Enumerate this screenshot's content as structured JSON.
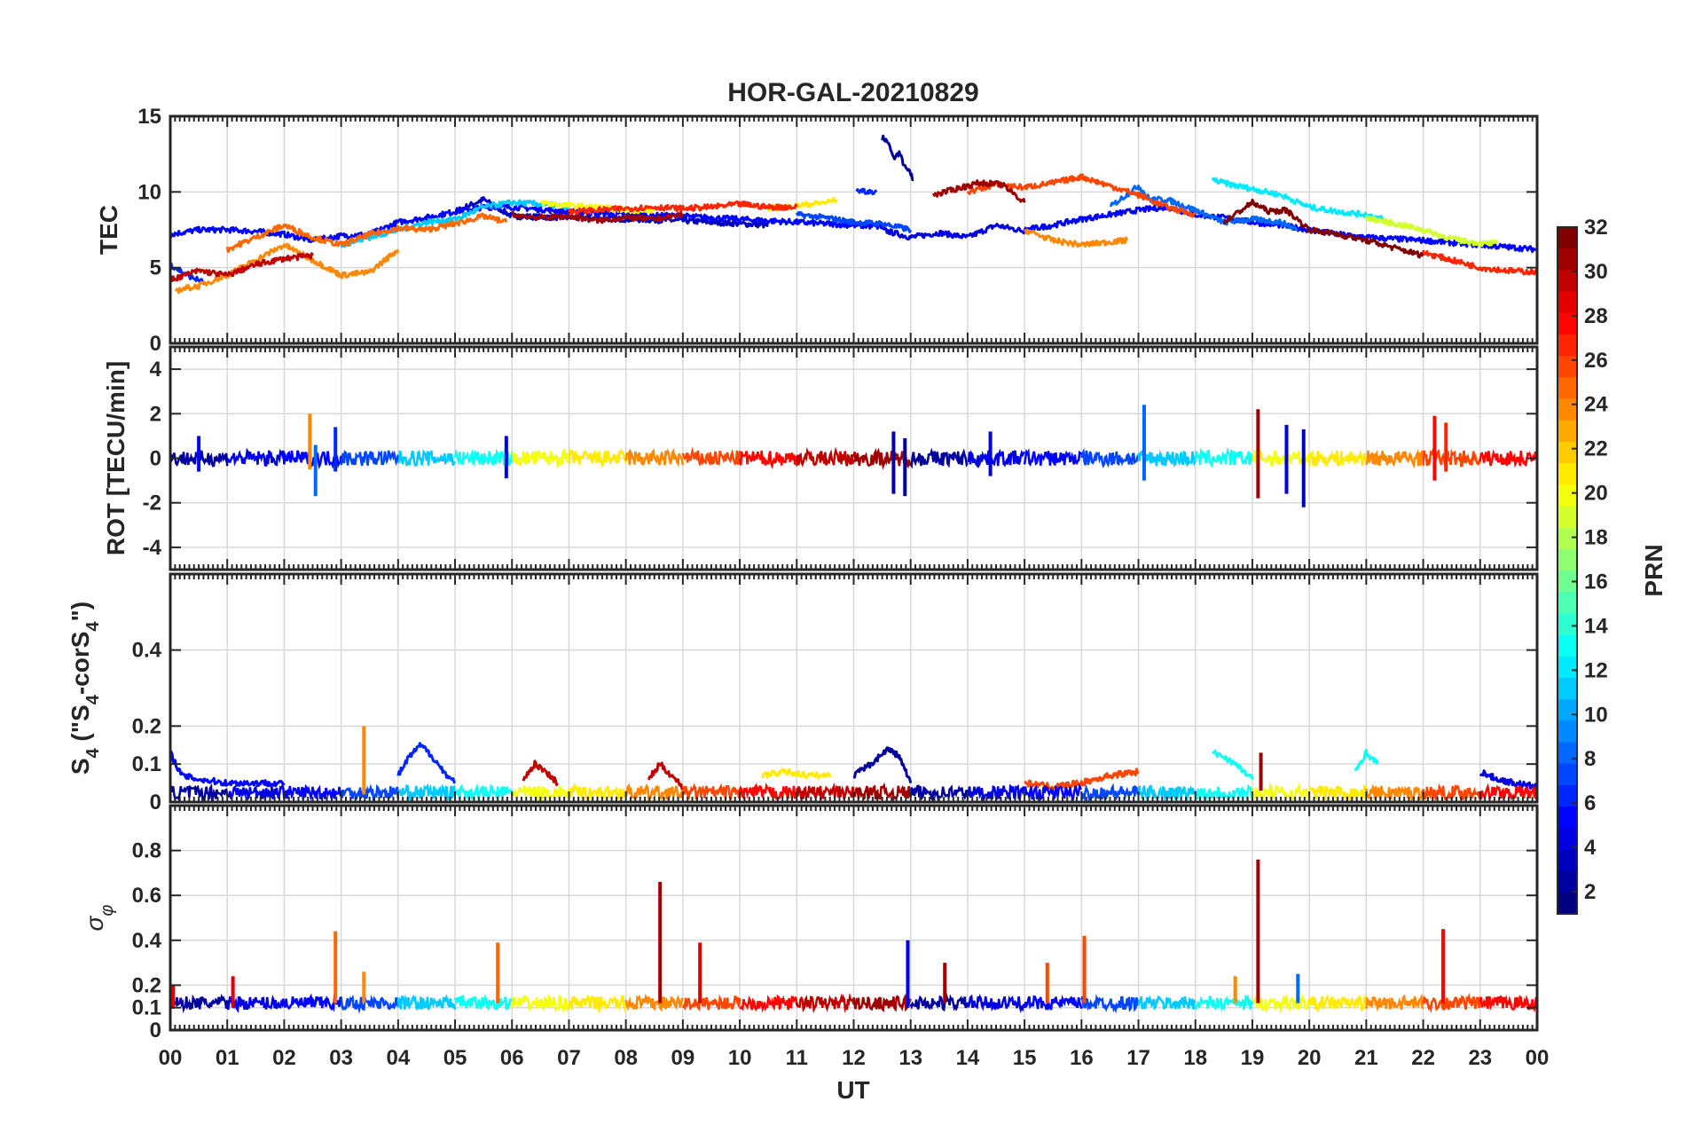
{
  "chart_data": {
    "type": "line",
    "title": "HOR-GAL-20210829",
    "xlabel": "UT",
    "x_tick_labels": [
      "00",
      "01",
      "02",
      "03",
      "04",
      "05",
      "06",
      "07",
      "08",
      "09",
      "10",
      "11",
      "12",
      "13",
      "14",
      "15",
      "16",
      "17",
      "18",
      "19",
      "20",
      "21",
      "22",
      "23",
      "00"
    ],
    "xlim_hours": [
      0,
      24
    ],
    "colorbar": {
      "label": "PRN",
      "range": [
        1,
        32
      ],
      "ticks": [
        "2",
        "4",
        "6",
        "8",
        "10",
        "12",
        "14",
        "16",
        "18",
        "20",
        "22",
        "24",
        "26",
        "28",
        "30",
        "32"
      ],
      "colormap": "jet"
    },
    "panels": [
      {
        "name": "tec",
        "ylabel": "TEC",
        "ylim": [
          0,
          15
        ],
        "yticks": [
          "0",
          "5",
          "10",
          "15"
        ],
        "ytick_values": [
          0,
          5,
          10,
          15
        ],
        "series": [
          {
            "prn": 2,
            "x": [
              12.5,
              12.6,
              12.7,
              12.8,
              12.9,
              13.0,
              13.05
            ],
            "y": [
              13.6,
              13.3,
              12.2,
              12.6,
              11.6,
              11.2,
              10.8
            ]
          },
          {
            "prn": 3,
            "x": [
              5.0,
              5.5,
              6.0,
              7.0,
              8.0,
              9.0,
              10.0,
              10.5
            ],
            "y": [
              8.7,
              9.5,
              8.4,
              8.3,
              8.2,
              8.1,
              7.9,
              7.8
            ]
          },
          {
            "prn": 4,
            "x": [
              12.5,
              13.0,
              13.5,
              14.0,
              14.5,
              15.0
            ],
            "y": [
              7.5,
              7.0,
              7.3,
              7.0,
              7.8,
              7.4
            ]
          },
          {
            "prn": 5,
            "x": [
              0.0,
              0.5,
              1.0,
              1.5,
              2.0,
              2.5,
              3.0,
              3.5,
              4.0,
              4.5,
              5.0,
              5.5,
              6.0,
              7.0,
              8.0,
              9.0,
              10.0,
              11.0,
              12.0,
              12.5
            ],
            "y": [
              7.2,
              7.5,
              7.5,
              7.4,
              7.2,
              6.8,
              7.1,
              7.2,
              8.0,
              8.3,
              8.7,
              9.0,
              9.0,
              8.7,
              8.5,
              8.4,
              8.2,
              8.0,
              7.8,
              7.7
            ]
          },
          {
            "prn": 5,
            "x": [
              15.0,
              15.5,
              16.0,
              16.5,
              17.0,
              17.5,
              18.0,
              18.5,
              19.0,
              19.5,
              20.0,
              20.5,
              21.0,
              22.0,
              23.0,
              24.0
            ],
            "y": [
              7.5,
              7.8,
              8.2,
              8.5,
              8.8,
              9.0,
              8.5,
              8.3,
              8.0,
              7.8,
              7.5,
              7.2,
              7.0,
              6.8,
              6.5,
              6.2
            ]
          },
          {
            "prn": 6,
            "x": [
              0.0,
              0.3,
              0.6
            ],
            "y": [
              5.2,
              4.5,
              4.0
            ]
          },
          {
            "prn": 7,
            "x": [
              11.0,
              11.5,
              12.0,
              12.5,
              13.0
            ],
            "y": [
              8.5,
              8.3,
              8.0,
              7.9,
              7.5
            ]
          },
          {
            "prn": 8,
            "x": [
              16.5,
              17.0,
              17.2,
              17.5,
              18.0,
              18.5,
              19.0,
              19.5,
              19.8
            ],
            "y": [
              9.0,
              10.4,
              9.5,
              9.5,
              8.8,
              8.0,
              8.2,
              8.0,
              7.5
            ]
          },
          {
            "prn": 11,
            "x": [
              3.0,
              3.5,
              4.0,
              4.5,
              5.0,
              5.5,
              6.0,
              6.5,
              7.0
            ],
            "y": [
              6.5,
              7.0,
              7.5,
              8.0,
              8.2,
              9.0,
              9.3,
              9.2,
              9.0
            ]
          },
          {
            "prn": 12,
            "x": [
              18.3,
              18.6,
              19.0,
              19.5,
              20.0,
              20.5,
              21.0,
              21.3
            ],
            "y": [
              10.8,
              10.5,
              10.2,
              9.8,
              9.0,
              8.7,
              8.5,
              8.2
            ]
          },
          {
            "prn": 20,
            "x": [
              6.5,
              7.0,
              7.5,
              8.0,
              8.5
            ],
            "y": [
              9.3,
              9.1,
              9.0,
              8.8,
              8.8
            ]
          },
          {
            "prn": 21,
            "x": [
              10.5,
              11.0,
              11.5,
              11.7
            ],
            "y": [
              8.9,
              9.1,
              9.3,
              9.5
            ]
          },
          {
            "prn": 19,
            "x": [
              21.0,
              21.5,
              22.0,
              22.5,
              23.0,
              23.3
            ],
            "y": [
              8.3,
              7.9,
              7.5,
              6.9,
              6.6,
              6.6
            ]
          },
          {
            "prn": 24,
            "x": [
              0.1,
              0.5,
              1.0,
              1.5,
              2.0,
              2.5,
              3.0,
              3.5,
              4.0
            ],
            "y": [
              3.5,
              3.8,
              4.5,
              5.5,
              6.5,
              5.5,
              4.5,
              4.7,
              6.2
            ]
          },
          {
            "prn": 25,
            "x": [
              1.0,
              1.5,
              2.0,
              2.5,
              3.0,
              3.5,
              4.0,
              4.5,
              5.0,
              5.5,
              5.9
            ],
            "y": [
              6.2,
              7.0,
              7.8,
              7.0,
              6.5,
              7.2,
              7.6,
              7.5,
              7.9,
              8.4,
              8.0
            ]
          },
          {
            "prn": 24,
            "x": [
              15.0,
              15.5,
              16.0,
              16.5,
              16.8
            ],
            "y": [
              7.5,
              6.8,
              6.5,
              6.7,
              6.8
            ]
          },
          {
            "prn": 26,
            "x": [
              14.0,
              14.5,
              15.0,
              15.5,
              16.0,
              16.5,
              17.0,
              17.5,
              18.0
            ],
            "y": [
              10.0,
              10.5,
              10.3,
              10.6,
              11.0,
              10.4,
              9.8,
              9.0,
              8.5
            ]
          },
          {
            "prn": 27,
            "x": [
              7.0,
              7.5,
              8.0,
              8.5,
              9.0,
              9.5,
              10.0,
              10.5,
              11.0
            ],
            "y": [
              8.7,
              8.8,
              8.9,
              9.0,
              8.9,
              9.0,
              9.2,
              9.0,
              9.0
            ]
          },
          {
            "prn": 27,
            "x": [
              22.0,
              22.5,
              23.0,
              23.5,
              24.0
            ],
            "y": [
              6.0,
              5.5,
              5.0,
              4.8,
              4.7
            ]
          },
          {
            "prn": 30,
            "x": [
              0.0,
              0.5,
              1.0,
              1.5,
              2.0,
              2.5
            ],
            "y": [
              4.2,
              4.8,
              4.5,
              5.2,
              5.6,
              5.8
            ]
          },
          {
            "prn": 31,
            "x": [
              6.0,
              6.5,
              7.0,
              7.5,
              8.0,
              8.5,
              9.0
            ],
            "y": [
              8.5,
              8.3,
              8.4,
              8.1,
              8.3,
              8.2,
              8.5
            ]
          },
          {
            "prn": 31,
            "x": [
              13.4,
              13.8,
              14.2,
              14.6,
              15.0
            ],
            "y": [
              9.8,
              10.2,
              10.6,
              10.5,
              9.3
            ]
          },
          {
            "prn": 32,
            "x": [
              18.5,
              19.0,
              19.3,
              19.6,
              20.0,
              20.5,
              21.0,
              21.5,
              22.0
            ],
            "y": [
              8.0,
              9.3,
              8.7,
              8.8,
              7.5,
              7.2,
              6.8,
              6.3,
              5.8
            ]
          },
          {
            "prn": 6,
            "x": [
              12.05,
              12.4
            ],
            "y": [
              10.1,
              10.0
            ]
          }
        ]
      },
      {
        "name": "rot",
        "ylabel": "ROT [TECU/min]",
        "ylim": [
          -5,
          5
        ],
        "yticks": [
          "-4",
          "-2",
          "0",
          "2",
          "4"
        ],
        "ytick_values": [
          -4,
          -2,
          0,
          2,
          4
        ],
        "spikes": [
          {
            "prn": 5,
            "x": 0.5,
            "low": -0.6,
            "high": 1.0
          },
          {
            "prn": 24,
            "x": 2.45,
            "low": -0.5,
            "high": 2.0
          },
          {
            "prn": 8,
            "x": 2.55,
            "low": -1.7,
            "high": 0.6
          },
          {
            "prn": 6,
            "x": 2.9,
            "low": -0.6,
            "high": 1.4
          },
          {
            "prn": 4,
            "x": 5.9,
            "low": -0.9,
            "high": 1.0
          },
          {
            "prn": 2,
            "x": 12.7,
            "low": -1.6,
            "high": 1.2
          },
          {
            "prn": 2,
            "x": 12.9,
            "low": -1.7,
            "high": 0.9
          },
          {
            "prn": 4,
            "x": 14.4,
            "low": -0.8,
            "high": 1.2
          },
          {
            "prn": 8,
            "x": 17.1,
            "low": -1.0,
            "high": 2.4
          },
          {
            "prn": 31,
            "x": 19.1,
            "low": -1.8,
            "high": 2.2
          },
          {
            "prn": 4,
            "x": 19.6,
            "low": -1.6,
            "high": 1.5
          },
          {
            "prn": 3,
            "x": 19.9,
            "low": -2.2,
            "high": 1.3
          },
          {
            "prn": 28,
            "x": 22.2,
            "low": -1.0,
            "high": 1.9
          },
          {
            "prn": 27,
            "x": 22.4,
            "low": -0.6,
            "high": 1.6
          }
        ]
      },
      {
        "name": "s4",
        "ylabel": "S4 (\"S4-corS4\")",
        "ylim": [
          0,
          0.6
        ],
        "yticks": [
          "0",
          "0.1",
          "0.2",
          "0.4"
        ],
        "ytick_values": [
          0,
          0.1,
          0.2,
          0.4
        ],
        "series": [
          {
            "prn": 5,
            "x": [
              0.0,
              0.2,
              0.5,
              1.0,
              1.5,
              2.0
            ],
            "y": [
              0.13,
              0.07,
              0.06,
              0.05,
              0.05,
              0.05
            ]
          },
          {
            "prn": 6,
            "x": [
              4.0,
              4.2,
              4.4,
              4.6,
              4.8,
              5.0
            ],
            "y": [
              0.07,
              0.12,
              0.15,
              0.12,
              0.08,
              0.05
            ]
          },
          {
            "prn": 2,
            "x": [
              12.0,
              12.3,
              12.6,
              12.8,
              13.0
            ],
            "y": [
              0.07,
              0.1,
              0.14,
              0.12,
              0.05
            ]
          },
          {
            "prn": 13,
            "x": [
              18.3,
              18.5,
              18.7,
              19.0
            ],
            "y": [
              0.13,
              0.12,
              0.1,
              0.06
            ]
          },
          {
            "prn": 13,
            "x": [
              20.8,
              21.0,
              21.2
            ],
            "y": [
              0.08,
              0.13,
              0.1
            ]
          },
          {
            "prn": 21,
            "x": [
              10.4,
              10.8,
              11.2,
              11.6
            ],
            "y": [
              0.07,
              0.08,
              0.07,
              0.07
            ]
          },
          {
            "prn": 4,
            "x": [
              23.0,
              23.3,
              23.6,
              24.0
            ],
            "y": [
              0.08,
              0.06,
              0.05,
              0.04
            ]
          },
          {
            "prn": 30,
            "x": [
              8.4,
              8.6,
              8.8,
              9.0
            ],
            "y": [
              0.06,
              0.1,
              0.07,
              0.04
            ]
          },
          {
            "prn": 30,
            "x": [
              6.2,
              6.4,
              6.6,
              6.8
            ],
            "y": [
              0.06,
              0.1,
              0.08,
              0.05
            ]
          },
          {
            "prn": 26,
            "x": [
              15.0,
              15.5,
              16.0,
              16.5,
              17.0
            ],
            "y": [
              0.05,
              0.04,
              0.05,
              0.07,
              0.08
            ]
          }
        ],
        "spikes": [
          {
            "prn": 24,
            "x": 3.4,
            "low": 0.02,
            "high": 0.2
          },
          {
            "prn": 31,
            "x": 19.15,
            "low": 0.03,
            "high": 0.13
          }
        ]
      },
      {
        "name": "sigma",
        "ylabel": "σφ",
        "ylim": [
          0,
          1
        ],
        "yticks": [
          "0",
          "0.1",
          "0.2",
          "0.4",
          "0.6",
          "0.8"
        ],
        "ytick_values": [
          0,
          0.1,
          0.2,
          0.4,
          0.6,
          0.8
        ],
        "spikes": [
          {
            "prn": 25,
            "x": 2.9,
            "low": 0.12,
            "high": 0.44
          },
          {
            "prn": 24,
            "x": 3.4,
            "low": 0.12,
            "high": 0.26
          },
          {
            "prn": 25,
            "x": 5.75,
            "low": 0.12,
            "high": 0.39
          },
          {
            "prn": 31,
            "x": 8.6,
            "low": 0.12,
            "high": 0.66
          },
          {
            "prn": 29,
            "x": 9.3,
            "low": 0.12,
            "high": 0.39
          },
          {
            "prn": 4,
            "x": 12.95,
            "low": 0.1,
            "high": 0.4
          },
          {
            "prn": 31,
            "x": 13.6,
            "low": 0.12,
            "high": 0.3
          },
          {
            "prn": 26,
            "x": 15.4,
            "low": 0.12,
            "high": 0.3
          },
          {
            "prn": 26,
            "x": 16.05,
            "low": 0.12,
            "high": 0.42
          },
          {
            "prn": 31,
            "x": 19.1,
            "low": 0.12,
            "high": 0.76
          },
          {
            "prn": 28,
            "x": 22.35,
            "low": 0.12,
            "high": 0.45
          },
          {
            "prn": 24,
            "x": 18.7,
            "low": 0.12,
            "high": 0.24
          },
          {
            "prn": 8,
            "x": 19.8,
            "low": 0.12,
            "high": 0.25
          },
          {
            "prn": 29,
            "x": 1.1,
            "low": 0.1,
            "high": 0.24
          },
          {
            "prn": 29,
            "x": 0.05,
            "low": 0.1,
            "high": 0.2
          }
        ]
      }
    ]
  }
}
